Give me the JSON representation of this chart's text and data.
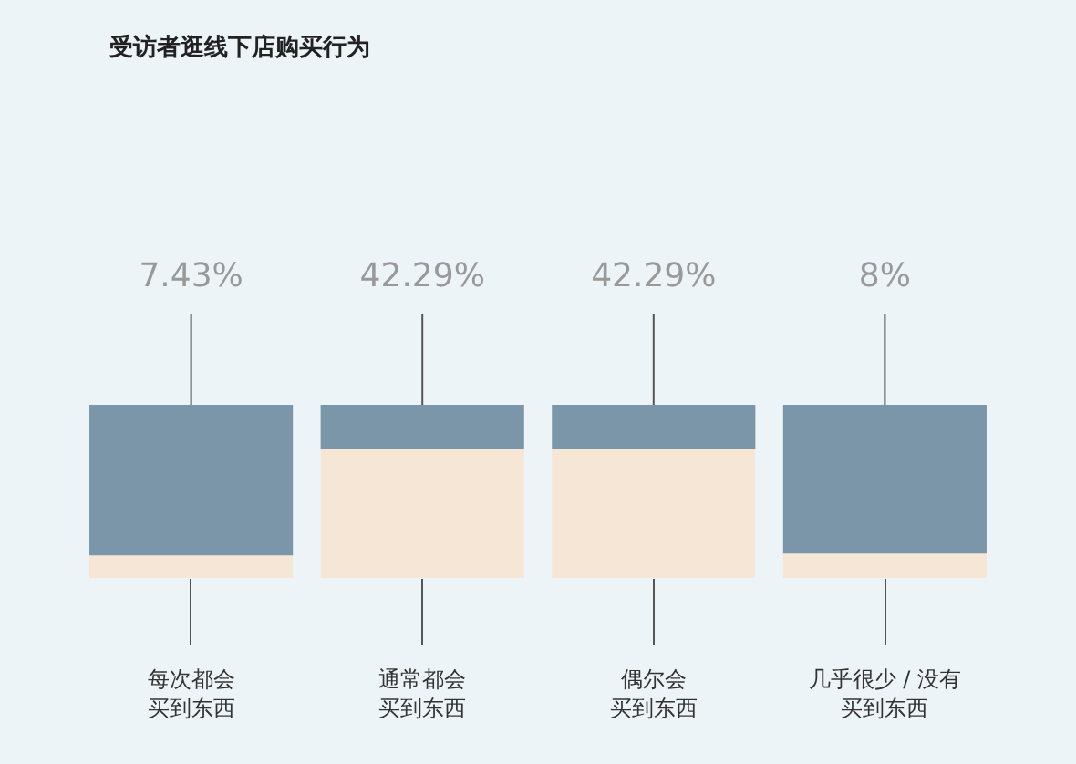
{
  "chart_data": {
    "type": "bar",
    "title": "受访者逛线下店购买行为",
    "categories": [
      "每次都会买到东西",
      "通常都会买到东西",
      "偶尔会买到东西",
      "几乎很少 / 没有买到东西"
    ],
    "stacked": true,
    "ylim": [
      0,
      57
    ],
    "series": [
      {
        "color": "#f5e6d5",
        "values": [
          7.43,
          42.29,
          42.29,
          8
        ],
        "value_labels": [
          "7.43%",
          "42.29%",
          "42.29%",
          "8%"
        ]
      },
      {
        "color": "#7b96a9",
        "values": [
          49.57,
          14.71,
          14.71,
          49
        ]
      }
    ]
  }
}
